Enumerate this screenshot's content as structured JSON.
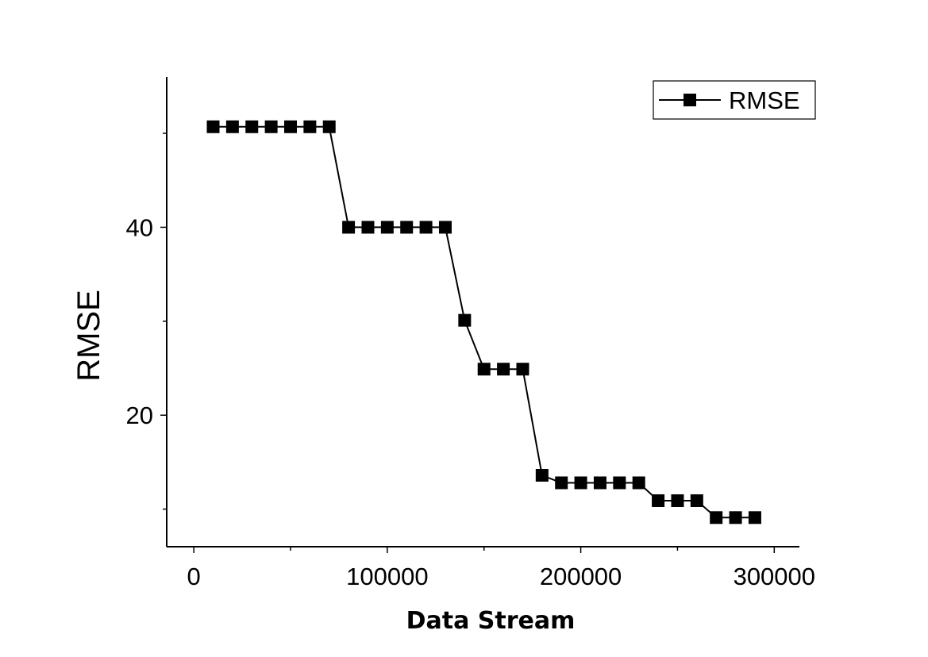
{
  "chart_data": {
    "type": "line",
    "xlabel": "Data Stream",
    "ylabel": "RMSE",
    "xlim": [
      -14000,
      313000
    ],
    "ylim": [
      6,
      56
    ],
    "x_ticks": [
      0,
      100000,
      200000,
      300000
    ],
    "x_minor_ticks": [
      50000,
      150000,
      250000
    ],
    "y_ticks": [
      20,
      40
    ],
    "y_minor_ticks": [
      10,
      30,
      50
    ],
    "grid": false,
    "legend_position": "top-right",
    "series": [
      {
        "name": "RMSE",
        "color": "#000000",
        "marker": "square",
        "x": [
          10000,
          20000,
          30000,
          40000,
          50000,
          60000,
          70000,
          80000,
          90000,
          100000,
          110000,
          120000,
          130000,
          140000,
          150000,
          160000,
          170000,
          180000,
          190000,
          200000,
          210000,
          220000,
          230000,
          240000,
          250000,
          260000,
          270000,
          280000,
          290000
        ],
        "y": [
          50.7,
          50.7,
          50.7,
          50.7,
          50.7,
          50.7,
          50.7,
          40.0,
          40.0,
          40.0,
          40.0,
          40.0,
          40.0,
          30.1,
          24.9,
          24.9,
          24.9,
          13.6,
          12.8,
          12.8,
          12.8,
          12.8,
          12.8,
          10.9,
          10.9,
          10.9,
          9.1,
          9.1,
          9.1
        ]
      }
    ]
  }
}
